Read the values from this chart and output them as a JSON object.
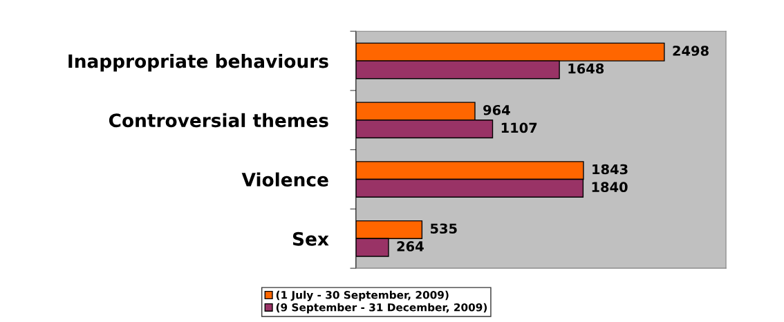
{
  "chart_data": {
    "type": "bar",
    "orientation": "horizontal",
    "categories": [
      "Inappropriate behaviours",
      "Controversial themes",
      "Violence",
      "Sex"
    ],
    "series": [
      {
        "name": "(1 July - 30 September, 2009)",
        "color": "#ff6600",
        "values": [
          2498,
          964,
          1843,
          535
        ]
      },
      {
        "name": "(9 September - 31 December, 2009)",
        "color": "#993366",
        "values": [
          1648,
          1107,
          1840,
          264
        ]
      }
    ],
    "data_labels": true,
    "legend": "bottom",
    "grid": false
  }
}
